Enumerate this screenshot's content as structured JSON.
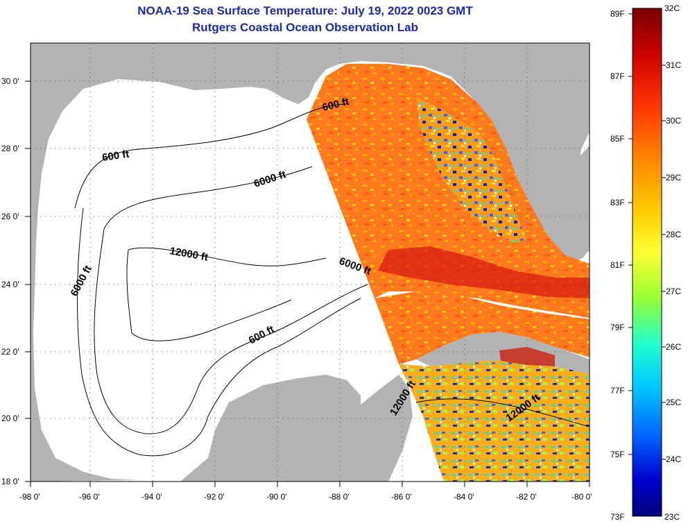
{
  "title": "NOAA-19 Sea Surface Temperature:  July 19, 2022 0023 GMT",
  "subtitle": "Rutgers Coastal Ocean Observation Lab",
  "lat_labels": [
    "30 0'",
    "28 0'",
    "26 0'",
    "24 0'",
    "22 0'",
    "20 0'",
    "18 0'"
  ],
  "lon_labels": [
    "-98 0'",
    "-96 0'",
    "-94 0'",
    "-92 0'",
    "-90 0'",
    "-88 0'",
    "-86 0'",
    "-84 0'",
    "-82 0'",
    "-80 0'"
  ],
  "contour_labels": [
    "600 ft",
    "6000 ft",
    "600 ft",
    "12000 ft",
    "6000 ft",
    "6000 ft",
    "600 ft",
    "12000 ft",
    "12000 ft"
  ],
  "colorbar": {
    "fahrenheit": [
      "89F",
      "87F",
      "85F",
      "83F",
      "81F",
      "79F",
      "77F",
      "75F",
      "73F"
    ],
    "celsius": [
      "32C",
      "31C",
      "30C",
      "29C",
      "28C",
      "27C",
      "26C",
      "25C",
      "24C",
      "23C"
    ],
    "colors": [
      "#7a0000",
      "#cc0000",
      "#ff3300",
      "#ff8800",
      "#ffcc00",
      "#ffff33",
      "#99ff33",
      "#22ffcc",
      "#00ccff",
      "#0066ff",
      "#0000cc",
      "#00007a"
    ]
  },
  "colors": {
    "title": "#1a2aa8",
    "land": "#b3b3b3",
    "no_data_ocean": "#ffffff",
    "sst_warm": "#ff6a1a",
    "sst_hot": "#d81a10",
    "sst_mid": "#ffb000",
    "sst_cool": "#2a6aff"
  }
}
